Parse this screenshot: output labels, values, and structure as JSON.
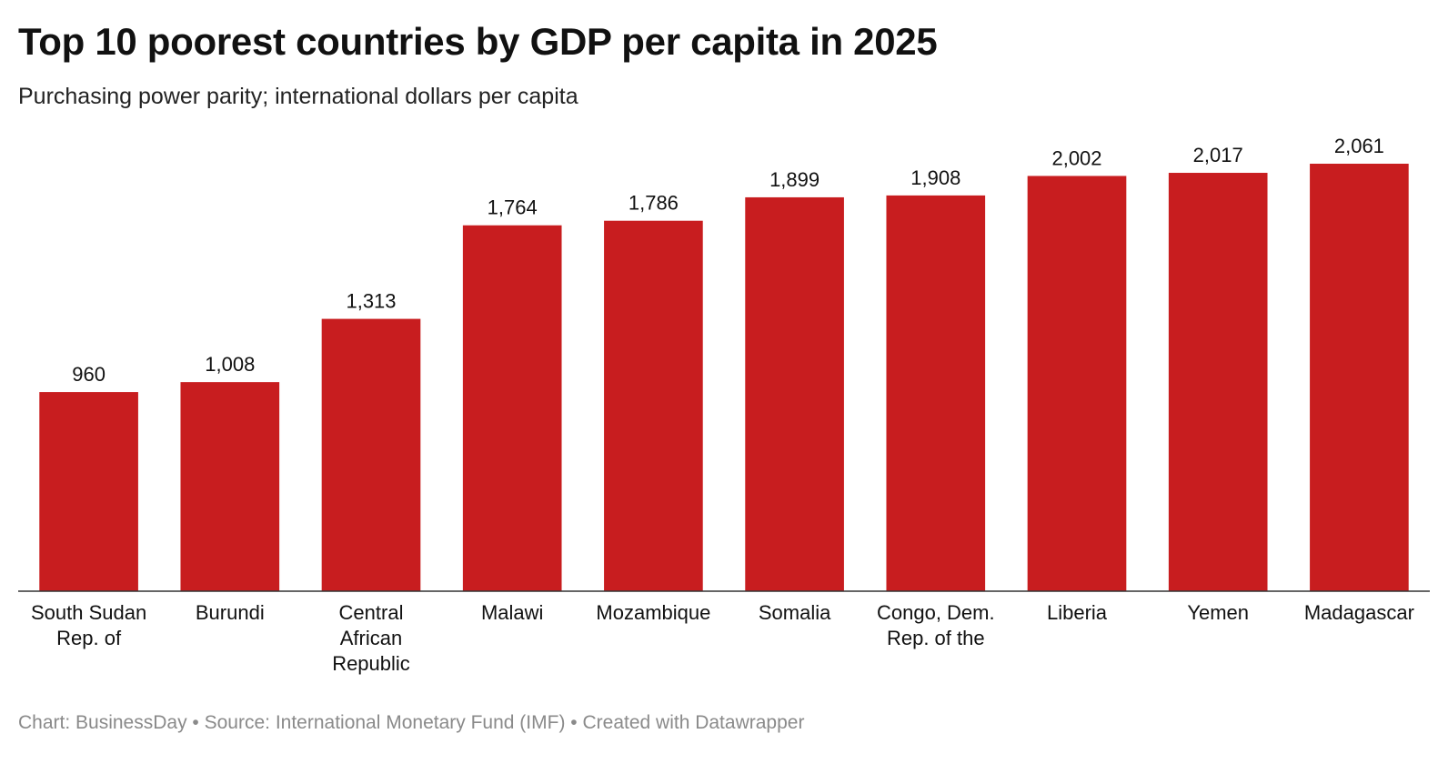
{
  "title": "Top 10 poorest countries by GDP per capita in 2025",
  "subtitle": "Purchasing power parity; international dollars per capita",
  "footer": {
    "chart_credit": "Chart: BusinessDay",
    "source": "Source: International Monetary Fund (IMF)",
    "tool": "Created with Datawrapper",
    "separator": " • "
  },
  "colors": {
    "bar": "#c81d1f",
    "axis": "#333333",
    "text": "#111111",
    "footer": "#8a8a8a"
  },
  "chart_data": {
    "type": "bar",
    "title": "Top 10 poorest countries by GDP per capita in 2025",
    "subtitle": "Purchasing power parity; international dollars per capita",
    "xlabel": "",
    "ylabel": "",
    "ylim": [
      0,
      2061
    ],
    "grid": false,
    "legend": "none",
    "categories": [
      [
        "South Sudan",
        "Rep. of"
      ],
      [
        "Burundi"
      ],
      [
        "Central",
        "African",
        "Republic"
      ],
      [
        "Malawi"
      ],
      [
        "Mozambique"
      ],
      [
        "Somalia"
      ],
      [
        "Congo, Dem.",
        "Rep. of the"
      ],
      [
        "Liberia"
      ],
      [
        "Yemen"
      ],
      [
        "Madagascar"
      ]
    ],
    "values": [
      960,
      1008,
      1313,
      1764,
      1786,
      1899,
      1908,
      2002,
      2017,
      2061
    ],
    "value_labels": [
      "960",
      "1,008",
      "1,313",
      "1,764",
      "1,786",
      "1,899",
      "1,908",
      "2,002",
      "2,017",
      "2,061"
    ]
  }
}
